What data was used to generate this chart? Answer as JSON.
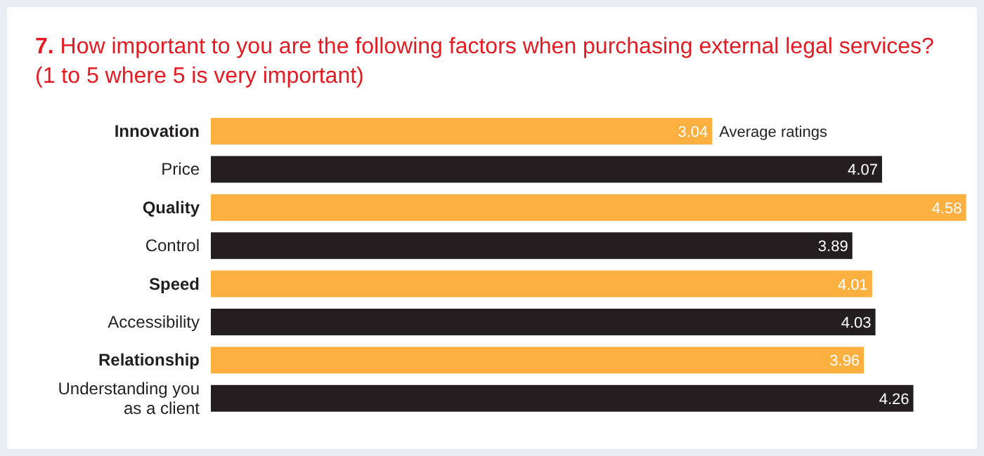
{
  "chart_data": {
    "type": "bar",
    "orientation": "horizontal",
    "title": "7. How important to you are the following factors when purchasing external legal services? (1 to 5 where 5 is very important)",
    "categories": [
      "Innovation",
      "Price",
      "Quality",
      "Control",
      "Speed",
      "Accessibility",
      "Relationship",
      "Understanding you as a client"
    ],
    "values": [
      3.04,
      4.07,
      4.58,
      3.89,
      4.01,
      4.03,
      3.96,
      4.26
    ],
    "colors": [
      "#fbb040",
      "#231f20",
      "#fbb040",
      "#231f20",
      "#fbb040",
      "#231f20",
      "#fbb040",
      "#231f20"
    ],
    "relative": false,
    "data_labels": true,
    "annotations": [
      {
        "text": "Average ratings",
        "x": 3.04,
        "y": "Innovation"
      }
    ]
  }
}
